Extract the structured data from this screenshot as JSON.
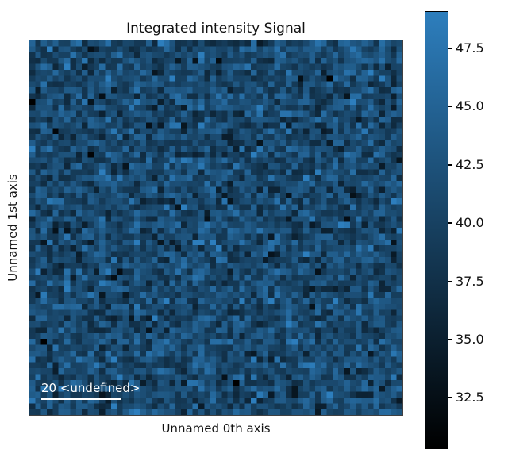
{
  "figure": {
    "title": "Integrated intensity Signal",
    "xlabel": "Unnamed 0th axis",
    "ylabel": "Unnamed 1st axis",
    "background": "#ffffff"
  },
  "scalebar": {
    "label": "20 <undefined>",
    "color": "#ffffff"
  },
  "colorbar": {
    "vmin": 30.3,
    "vmax": 49.1,
    "color_min": "#000000",
    "color_max": "#2d7ebd",
    "ticks": [
      {
        "value": 47.5,
        "label": "47.5"
      },
      {
        "value": 45.0,
        "label": "45.0"
      },
      {
        "value": 42.5,
        "label": "42.5"
      },
      {
        "value": 40.0,
        "label": "40.0"
      },
      {
        "value": 37.5,
        "label": "37.5"
      },
      {
        "value": 35.0,
        "label": "35.0"
      },
      {
        "value": 32.5,
        "label": "32.5"
      }
    ]
  },
  "chart_data": {
    "type": "heatmap",
    "title": "Integrated intensity Signal",
    "xlabel": "Unnamed 0th axis",
    "ylabel": "Unnamed 1st axis",
    "rows": 64,
    "cols": 64,
    "vmin": 30.3,
    "vmax": 49.1,
    "colormap": [
      "#000000",
      "#2d7ebd"
    ],
    "colorbar_ticks": [
      47.5,
      45.0,
      42.5,
      40.0,
      37.5,
      35.0,
      32.5
    ],
    "legend_position": "colorbar-right",
    "grid": false,
    "values_distribution": {
      "kind": "gaussian-noise",
      "mean": 41.2,
      "std": 3.2,
      "seed": 77
    },
    "scalebar_text": "20 <undefined>"
  }
}
